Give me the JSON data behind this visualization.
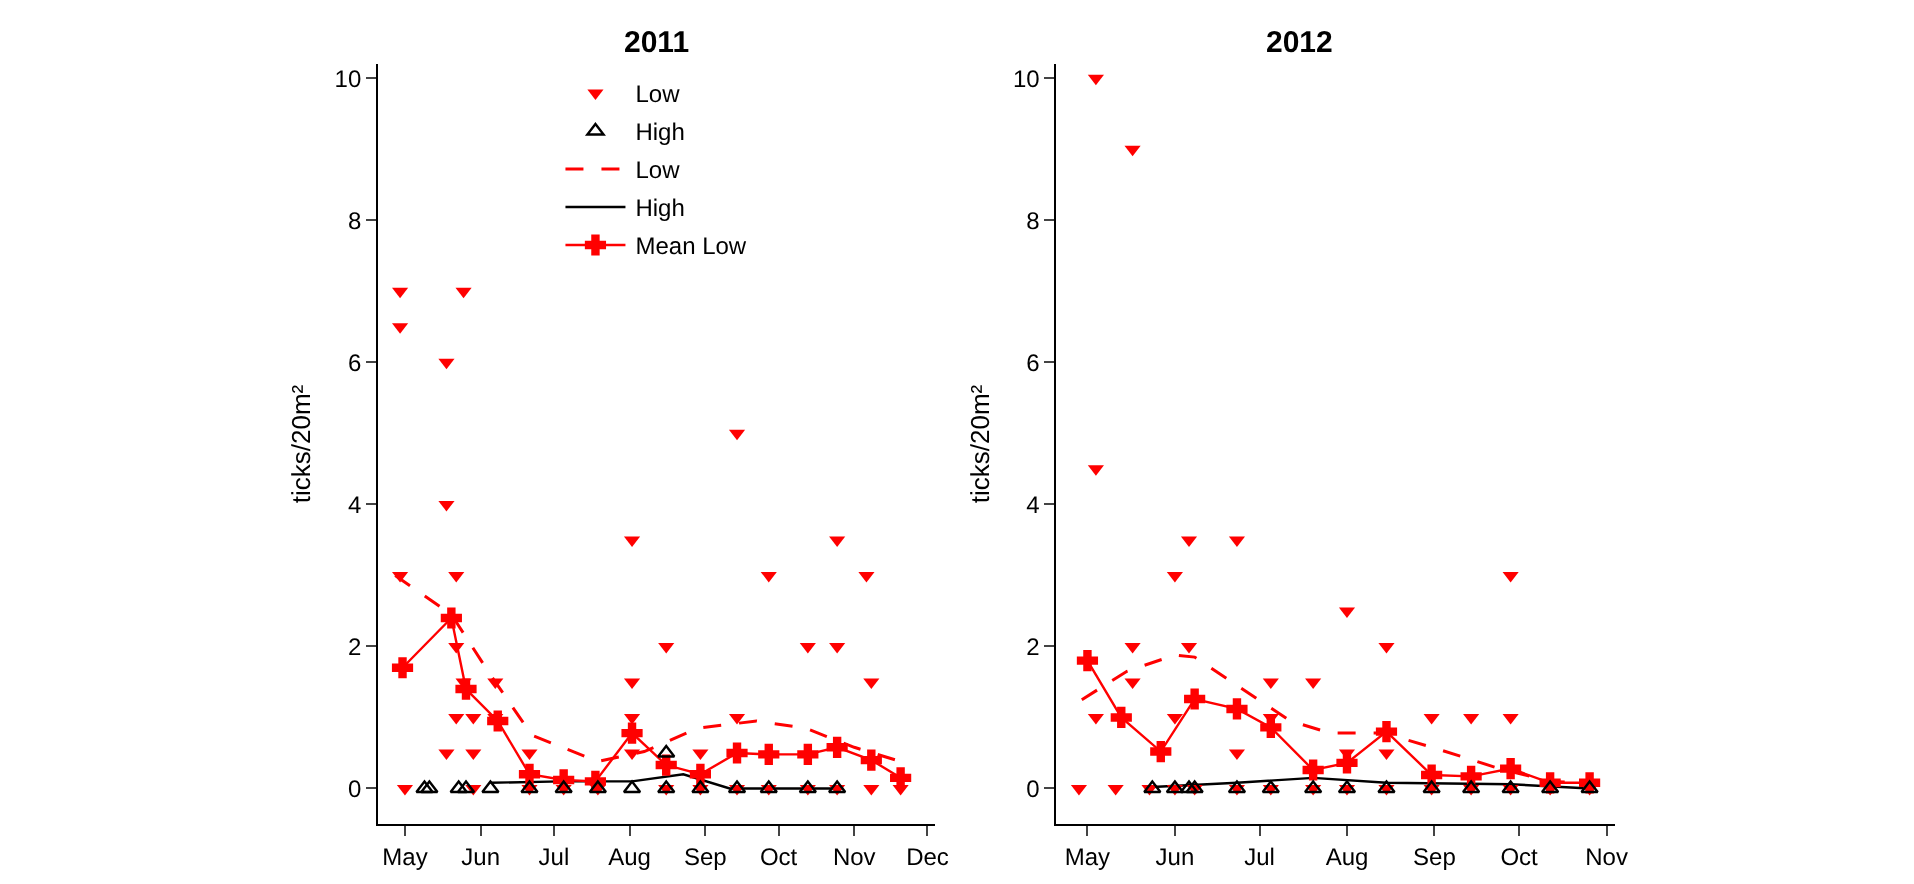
{
  "chart_data": [
    {
      "type": "scatter",
      "title": "2011",
      "ylabel": "ticks/20m²",
      "legend": "top",
      "xlim": [
        "2011-04-20",
        "2011-12-04"
      ],
      "ylim": [
        -0.5,
        10.2
      ],
      "xticks": [
        {
          "value": "2011-05-01",
          "label": "May"
        },
        {
          "value": "2011-06-01",
          "label": "Jun"
        },
        {
          "value": "2011-07-01",
          "label": "Jul"
        },
        {
          "value": "2011-08-01",
          "label": "Aug"
        },
        {
          "value": "2011-09-01",
          "label": "Sep"
        },
        {
          "value": "2011-10-01",
          "label": "Oct"
        },
        {
          "value": "2011-11-01",
          "label": "Nov"
        },
        {
          "value": "2011-12-01",
          "label": "Dec"
        }
      ],
      "yticks": [
        0,
        2,
        4,
        6,
        8,
        10
      ],
      "series": [
        {
          "name": "Low",
          "marker": "triangle",
          "color": "#ff0000",
          "x": [
            "2011-04-29",
            "2011-04-29",
            "2011-04-29",
            "2011-05-01",
            "2011-05-25",
            "2011-05-18",
            "2011-05-18",
            "2011-05-22",
            "2011-05-22",
            "2011-05-25",
            "2011-05-22",
            "2011-05-29",
            "2011-05-18",
            "2011-05-29",
            "2011-05-29",
            "2011-06-07",
            "2011-06-07",
            "2011-06-21",
            "2011-06-21",
            "2011-07-05",
            "2011-07-19",
            "2011-08-02",
            "2011-08-02",
            "2011-08-02",
            "2011-08-02",
            "2011-08-16",
            "2011-08-16",
            "2011-08-30",
            "2011-08-30",
            "2011-09-14",
            "2011-09-14",
            "2011-09-14",
            "2011-09-27",
            "2011-09-27",
            "2011-10-13",
            "2011-10-13",
            "2011-10-25",
            "2011-10-25",
            "2011-10-25",
            "2011-11-06",
            "2011-11-08",
            "2011-11-08",
            "2011-11-20"
          ],
          "values": [
            7.0,
            6.5,
            3.0,
            0,
            7.0,
            6.0,
            4.0,
            3.0,
            2.0,
            1.5,
            1.0,
            1.0,
            0.5,
            0.5,
            0,
            1.5,
            1.0,
            0.5,
            0,
            0,
            0,
            3.5,
            1.5,
            1.0,
            0.5,
            2.0,
            0,
            0.5,
            0,
            5.0,
            1.0,
            0,
            3.0,
            0,
            2.0,
            0,
            3.5,
            2.0,
            0,
            3.0,
            1.5,
            0,
            0
          ]
        },
        {
          "name": "High",
          "marker": "triangle-open",
          "color": "#000000",
          "x": [
            "2011-05-09",
            "2011-05-11",
            "2011-05-23",
            "2011-05-26",
            "2011-06-05",
            "2011-06-21",
            "2011-07-05",
            "2011-07-19",
            "2011-08-02",
            "2011-08-16",
            "2011-08-16",
            "2011-08-30",
            "2011-09-14",
            "2011-09-27",
            "2011-10-13",
            "2011-10-25"
          ],
          "values": [
            0,
            0,
            0,
            0,
            0,
            0,
            0,
            0,
            0,
            0.5,
            0,
            0,
            0,
            0,
            0,
            0
          ]
        },
        {
          "name": "Low",
          "type": "line",
          "line_style": "dashed",
          "marker": "none",
          "color": "#ff0000",
          "x": [
            "2011-04-27",
            "2011-05-20",
            "2011-06-05",
            "2011-06-22",
            "2011-07-19",
            "2011-08-07",
            "2011-08-29",
            "2011-09-22",
            "2011-10-12",
            "2011-11-01",
            "2011-11-20"
          ],
          "values": [
            3.0,
            2.45,
            1.6,
            0.75,
            0.38,
            0.52,
            0.85,
            0.95,
            0.85,
            0.58,
            0.38
          ]
        },
        {
          "name": "High",
          "type": "line",
          "line_style": "solid",
          "marker": "none",
          "color": "#000000",
          "x": [
            "2011-06-05",
            "2011-07-04",
            "2011-08-02",
            "2011-08-23",
            "2011-09-11",
            "2011-10-27"
          ],
          "values": [
            0.08,
            0.1,
            0.1,
            0.2,
            0,
            0
          ]
        },
        {
          "name": "Mean Low",
          "type": "line",
          "line_style": "solid",
          "marker": "cross",
          "color": "#ff0000",
          "x": [
            "2011-04-30",
            "2011-05-20",
            "2011-05-26",
            "2011-06-08",
            "2011-06-21",
            "2011-07-05",
            "2011-07-18",
            "2011-08-02",
            "2011-08-16",
            "2011-08-30",
            "2011-09-14",
            "2011-09-27",
            "2011-10-13",
            "2011-10-25",
            "2011-11-08",
            "2011-11-20"
          ],
          "values": [
            1.7,
            2.4,
            1.4,
            0.95,
            0.2,
            0.12,
            0.1,
            0.78,
            0.33,
            0.2,
            0.5,
            0.48,
            0.48,
            0.58,
            0.4,
            0.15
          ]
        }
      ]
    },
    {
      "type": "scatter",
      "title": "2012",
      "ylabel": "ticks/20m²",
      "legend": false,
      "xlim": [
        "2012-04-20",
        "2012-11-04"
      ],
      "ylim": [
        -0.5,
        10.2
      ],
      "xticks": [
        {
          "value": "2012-05-01",
          "label": "May"
        },
        {
          "value": "2012-06-01",
          "label": "Jun"
        },
        {
          "value": "2012-07-01",
          "label": "Jul"
        },
        {
          "value": "2012-08-01",
          "label": "Aug"
        },
        {
          "value": "2012-09-01",
          "label": "Sep"
        },
        {
          "value": "2012-10-01",
          "label": "Oct"
        },
        {
          "value": "2012-11-01",
          "label": "Nov"
        }
      ],
      "yticks": [
        0,
        2,
        4,
        6,
        8,
        10
      ],
      "series": [
        {
          "marker": "triangle",
          "color": "#ff0000",
          "x": [
            "2012-05-04",
            "2012-05-17",
            "2012-05-04",
            "2012-05-04",
            "2012-04-28",
            "2012-05-11",
            "2012-05-17",
            "2012-05-17",
            "2012-05-23",
            "2012-06-01",
            "2012-06-01",
            "2012-06-01",
            "2012-06-06",
            "2012-06-06",
            "2012-06-08",
            "2012-06-23",
            "2012-06-23",
            "2012-06-23",
            "2012-07-05",
            "2012-07-05",
            "2012-07-05",
            "2012-07-20",
            "2012-07-20",
            "2012-08-01",
            "2012-08-01",
            "2012-08-01",
            "2012-08-15",
            "2012-08-15",
            "2012-08-15",
            "2012-08-31",
            "2012-08-31",
            "2012-09-14",
            "2012-09-14",
            "2012-09-28",
            "2012-09-28",
            "2012-09-28",
            "2012-10-12",
            "2012-10-26"
          ],
          "values": [
            10.0,
            9.0,
            4.5,
            1.0,
            0,
            0,
            2.0,
            1.5,
            0,
            3.0,
            1.0,
            0,
            3.5,
            2.0,
            0,
            3.5,
            0.5,
            0,
            1.5,
            1.0,
            0,
            1.5,
            0,
            2.5,
            0.5,
            0,
            2.0,
            0.5,
            0,
            1.0,
            0,
            1.0,
            0,
            3.0,
            1.0,
            0,
            0,
            0
          ]
        },
        {
          "marker": "triangle-open",
          "color": "#000000",
          "x": [
            "2012-05-24",
            "2012-06-01",
            "2012-06-06",
            "2012-06-08",
            "2012-06-23",
            "2012-07-05",
            "2012-07-20",
            "2012-08-01",
            "2012-08-15",
            "2012-08-31",
            "2012-09-14",
            "2012-09-28",
            "2012-10-12",
            "2012-10-26"
          ],
          "values": [
            0,
            0,
            0,
            0,
            0,
            0,
            0,
            0,
            0,
            0,
            0,
            0,
            0,
            0
          ]
        },
        {
          "type": "line",
          "line_style": "dashed",
          "marker": "none",
          "color": "#ff0000",
          "x": [
            "2012-04-29",
            "2012-05-15",
            "2012-06-01",
            "2012-06-08",
            "2012-06-23",
            "2012-07-12",
            "2012-07-26",
            "2012-08-14",
            "2012-09-01",
            "2012-09-24",
            "2012-10-12",
            "2012-10-26"
          ],
          "values": [
            1.25,
            1.65,
            1.88,
            1.85,
            1.45,
            0.95,
            0.78,
            0.78,
            0.57,
            0.28,
            0.1,
            0.08
          ]
        },
        {
          "type": "line",
          "line_style": "solid",
          "marker": "none",
          "color": "#000000",
          "x": [
            "2012-05-24",
            "2012-06-23",
            "2012-07-20",
            "2012-08-15",
            "2012-09-28",
            "2012-10-26"
          ],
          "values": [
            0.02,
            0.08,
            0.15,
            0.08,
            0.06,
            0
          ]
        },
        {
          "type": "line",
          "line_style": "solid",
          "marker": "cross",
          "color": "#ff0000",
          "x": [
            "2012-05-01",
            "2012-05-13",
            "2012-05-27",
            "2012-06-08",
            "2012-06-23",
            "2012-07-05",
            "2012-07-20",
            "2012-08-01",
            "2012-08-15",
            "2012-08-31",
            "2012-09-14",
            "2012-09-28",
            "2012-10-12",
            "2012-10-26"
          ],
          "values": [
            1.8,
            1.0,
            0.52,
            1.26,
            1.12,
            0.86,
            0.26,
            0.36,
            0.8,
            0.19,
            0.17,
            0.28,
            0.08,
            0.08
          ]
        }
      ]
    }
  ]
}
